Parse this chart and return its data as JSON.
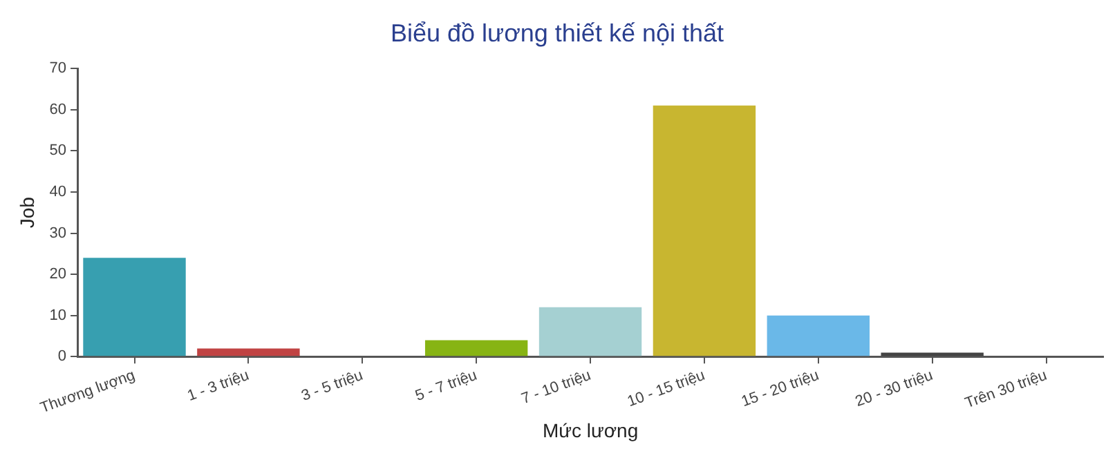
{
  "chart_data": {
    "type": "bar",
    "title": "Biểu đồ lương thiết kế nội thất",
    "xlabel": "Mức lương",
    "ylabel": "Job",
    "categories": [
      "Thương lượng",
      "1 - 3 triệu",
      "3 - 5 triệu",
      "5 - 7 triệu",
      "7 - 10 triệu",
      "10 - 15 triệu",
      "15 - 20 triệu",
      "20 - 30 triệu",
      "Trên 30 triệu"
    ],
    "values": [
      24,
      2,
      0,
      4,
      12,
      61,
      10,
      1,
      0
    ],
    "colors": [
      "#379fb0",
      "#c04343",
      "#7b5ea7",
      "#87b414",
      "#a5d0d2",
      "#c8b630",
      "#6ab8e8",
      "#444444",
      "#e08a3c"
    ],
    "ylim": [
      0,
      70
    ],
    "yticks": [
      0,
      10,
      20,
      30,
      40,
      50,
      60,
      70
    ],
    "grid": false,
    "legend": false
  }
}
